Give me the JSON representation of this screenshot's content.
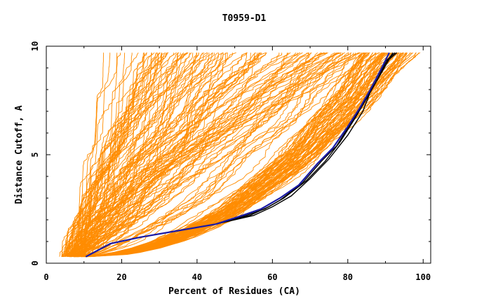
{
  "chart_data": {
    "type": "line",
    "title": "T0959-D1",
    "xlabel": "Percent of Residues (CA)",
    "ylabel": "Distance Cutoff, A",
    "xlim": [
      0,
      102
    ],
    "ylim": [
      0,
      10
    ],
    "x_ticks": [
      "0",
      "20",
      "40",
      "60",
      "80",
      "100"
    ],
    "y_ticks": [
      "0",
      "5",
      "10"
    ],
    "grid": false,
    "legend": "none",
    "colors": {
      "background_models": "#ff8c00",
      "highlight_blue": "#1a1aa6",
      "highlight_black": "#000000"
    },
    "series": [
      {
        "values": [
          [
            10.5,
            0.3
          ],
          [
            17,
            0.9
          ],
          [
            25,
            1.2
          ],
          [
            35,
            1.5
          ],
          [
            45,
            1.8
          ],
          [
            52,
            2.2
          ],
          [
            57,
            2.5
          ],
          [
            62,
            3.0
          ],
          [
            67,
            3.6
          ],
          [
            72,
            4.6
          ],
          [
            76,
            5.3
          ],
          [
            80,
            6.3
          ],
          [
            83,
            7.1
          ],
          [
            86,
            8.0
          ],
          [
            89,
            9.0
          ],
          [
            91,
            9.7
          ]
        ]
      },
      {
        "values": [
          [
            10.5,
            0.3
          ],
          [
            17,
            0.9
          ],
          [
            25,
            1.2
          ],
          [
            35,
            1.5
          ],
          [
            45,
            1.8
          ],
          [
            53,
            2.2
          ],
          [
            58,
            2.5
          ],
          [
            62,
            2.9
          ],
          [
            68,
            3.7
          ],
          [
            73,
            4.7
          ],
          [
            77,
            5.4
          ],
          [
            81,
            6.5
          ],
          [
            84,
            7.3
          ],
          [
            87,
            8.2
          ],
          [
            90,
            9.2
          ],
          [
            92,
            9.7
          ]
        ]
      },
      {
        "values": [
          [
            10.5,
            0.3
          ],
          [
            17,
            0.9
          ],
          [
            25,
            1.2
          ],
          [
            35,
            1.5
          ],
          [
            45,
            1.8
          ],
          [
            54,
            2.2
          ],
          [
            59,
            2.6
          ],
          [
            63,
            3.0
          ],
          [
            69,
            3.8
          ],
          [
            74,
            4.7
          ],
          [
            78,
            5.6
          ],
          [
            82,
            6.7
          ],
          [
            85,
            7.6
          ],
          [
            88,
            8.5
          ],
          [
            90,
            9.3
          ],
          [
            92.5,
            9.7
          ]
        ]
      },
      {
        "values": [
          [
            10.5,
            0.3
          ],
          [
            17,
            0.9
          ],
          [
            25,
            1.2
          ],
          [
            35,
            1.5
          ],
          [
            45,
            1.8
          ],
          [
            55,
            2.2
          ],
          [
            60,
            2.6
          ],
          [
            65,
            3.1
          ],
          [
            70,
            3.9
          ],
          [
            75,
            4.8
          ],
          [
            80,
            5.9
          ],
          [
            84,
            7.0
          ],
          [
            86,
            7.9
          ],
          [
            89,
            8.8
          ],
          [
            91,
            9.4
          ],
          [
            93,
            9.7
          ]
        ]
      }
    ]
  }
}
